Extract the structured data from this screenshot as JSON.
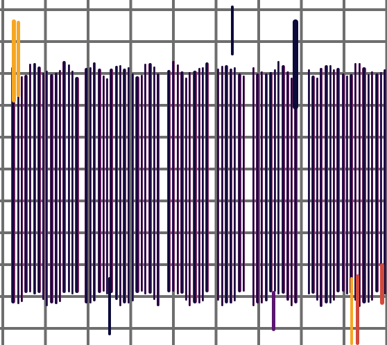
{
  "artwork": {
    "text": "",
    "colors": {
      "grid_line": "#6e6e6e",
      "background": "#ffffff",
      "ink_dark": "#0c0a3a",
      "ink_mid": "#5b1670",
      "ink_warm": "#d24a3c",
      "ink_bright": "#f6a623"
    }
  }
}
